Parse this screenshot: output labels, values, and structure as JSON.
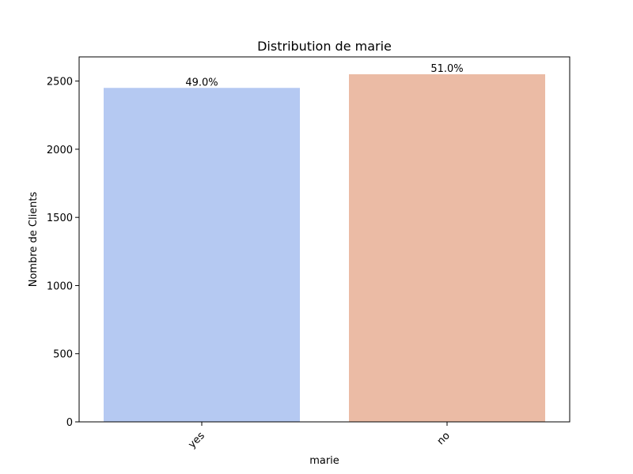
{
  "chart_data": {
    "type": "bar",
    "title": "Distribution de marie",
    "xlabel": "marie",
    "ylabel": "Nombre de Clients",
    "categories": [
      "yes",
      "no"
    ],
    "values": [
      2450,
      2550
    ],
    "data_labels": [
      "49.0%",
      "51.0%"
    ],
    "colors": [
      "#b5c9f2",
      "#ebbba5"
    ],
    "ylim": [
      0,
      2677.5
    ],
    "yticks": [
      0,
      500,
      1000,
      1500,
      2000,
      2500
    ],
    "grid": false,
    "legend": "none"
  }
}
